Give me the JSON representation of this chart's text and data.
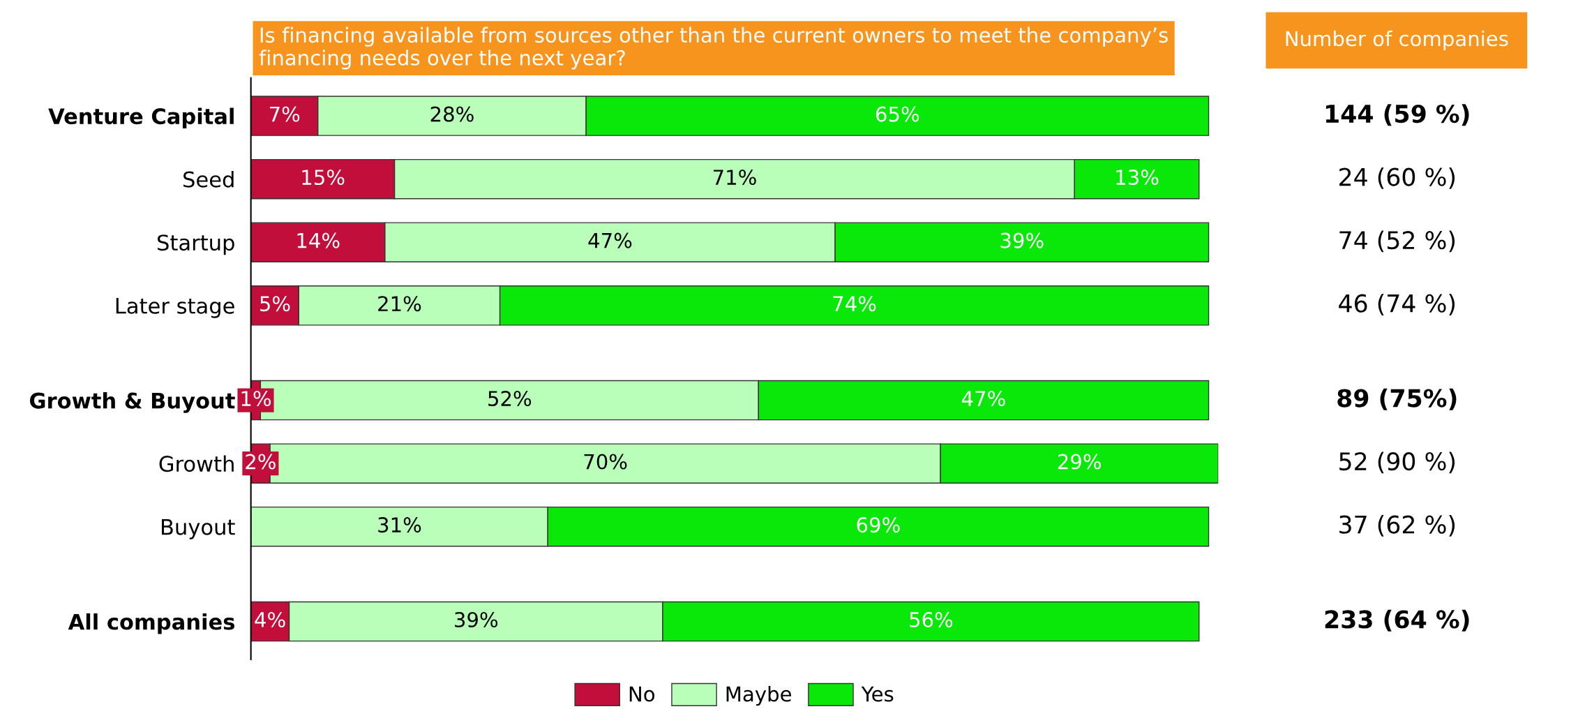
{
  "chart_data": {
    "type": "bar",
    "orientation": "horizontal",
    "stacked": true,
    "title": "Is financing available from sources other than the current owners to meet the company’s financing needs over the next year?",
    "categories": [
      "Venture Capital",
      "Seed",
      "Startup",
      "Later stage",
      null,
      "Growth & Buyout",
      "Growth",
      "Buyout",
      null,
      "All companies"
    ],
    "series": [
      {
        "name": "No",
        "color": "#c20e3a",
        "values": [
          7,
          15,
          14,
          5,
          null,
          1,
          2,
          null,
          null,
          4
        ],
        "value_labels": [
          "7%",
          "15%",
          "14%",
          "5%",
          null,
          "1%",
          "2%",
          null,
          null,
          "4%"
        ]
      },
      {
        "name": "Maybe",
        "color": "#b9ffb9",
        "values": [
          28,
          71,
          47,
          21,
          null,
          52,
          70,
          31,
          null,
          39
        ],
        "value_labels": [
          "28%",
          "71%",
          "47%",
          "21%",
          null,
          "52%",
          "70%",
          "31%",
          null,
          "39%"
        ]
      },
      {
        "name": "Yes",
        "color": "#0ae80a",
        "values": [
          65,
          13,
          39,
          74,
          null,
          47,
          29,
          69,
          null,
          56
        ],
        "value_labels": [
          "65%",
          "13%",
          "39%",
          "74%",
          null,
          "47%",
          "29%",
          "69%",
          null,
          "56%"
        ]
      }
    ],
    "annotations": [
      "Number of companies",
      "144 (59 %)",
      "24 (60 %)",
      "74 (52 %)",
      "46 (74 %)",
      "89 (75%)",
      "52 (90 %)",
      "37 (62 %)",
      "233 (64 %)"
    ],
    "legend": "bottom"
  }
}
